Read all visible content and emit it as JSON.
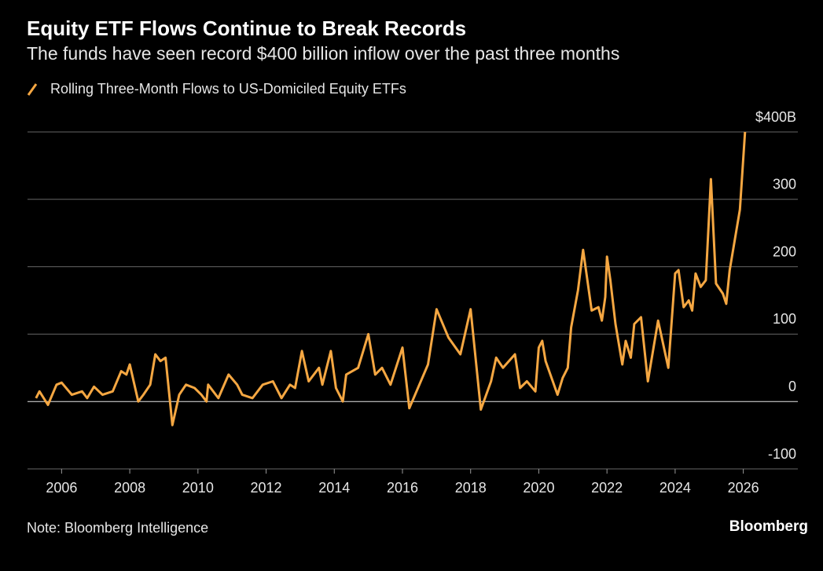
{
  "chart_data": {
    "type": "line",
    "title": "Equity ETF Flows Continue to Break Records",
    "subtitle": "The funds have seen record $400 billion inflow over the past three months",
    "note": "Note: Bloomberg Intelligence",
    "brand": "Bloomberg",
    "x": [
      2005.25,
      2005.35,
      2005.6,
      2005.85,
      2006.0,
      2006.3,
      2006.6,
      2006.75,
      2006.95,
      2007.2,
      2007.5,
      2007.75,
      2007.9,
      2008.0,
      2008.25,
      2008.4,
      2008.6,
      2008.75,
      2008.9,
      2009.05,
      2009.25,
      2009.45,
      2009.65,
      2009.9,
      2010.1,
      2010.25,
      2010.3,
      2010.6,
      2010.9,
      2011.15,
      2011.3,
      2011.6,
      2011.9,
      2012.2,
      2012.45,
      2012.7,
      2012.85,
      2013.05,
      2013.25,
      2013.55,
      2013.65,
      2013.9,
      2014.05,
      2014.25,
      2014.35,
      2014.7,
      2015.0,
      2015.2,
      2015.4,
      2015.65,
      2016.0,
      2016.2,
      2016.75,
      2017.0,
      2017.35,
      2017.7,
      2018.0,
      2018.3,
      2018.6,
      2018.75,
      2018.95,
      2019.3,
      2019.45,
      2019.65,
      2019.9,
      2020.0,
      2020.1,
      2020.2,
      2020.55,
      2020.7,
      2020.85,
      2020.95,
      2021.15,
      2021.3,
      2021.55,
      2021.75,
      2021.85,
      2021.95,
      2022.0,
      2022.1,
      2022.25,
      2022.45,
      2022.55,
      2022.7,
      2022.8,
      2023.0,
      2023.2,
      2023.5,
      2023.8,
      2024.0,
      2024.1,
      2024.25,
      2024.4,
      2024.5,
      2024.6,
      2024.75,
      2024.9,
      2025.05,
      2025.2,
      2025.4,
      2025.5,
      2025.6,
      2025.9,
      2026.05
    ],
    "series": [
      {
        "name": "Rolling Three-Month Flows to US-Domiciled Equity ETFs",
        "color": "#f5a742",
        "values": [
          5,
          15,
          -5,
          25,
          28,
          10,
          15,
          5,
          22,
          10,
          15,
          45,
          40,
          55,
          0,
          10,
          25,
          70,
          60,
          65,
          -35,
          10,
          25,
          20,
          10,
          0,
          25,
          5,
          40,
          25,
          10,
          5,
          25,
          30,
          5,
          25,
          20,
          75,
          30,
          50,
          25,
          75,
          20,
          0,
          40,
          50,
          100,
          40,
          50,
          25,
          80,
          -10,
          55,
          137,
          95,
          70,
          137,
          -12,
          30,
          65,
          50,
          70,
          20,
          30,
          15,
          80,
          90,
          60,
          10,
          35,
          50,
          110,
          165,
          225,
          135,
          140,
          120,
          155,
          215,
          180,
          115,
          55,
          90,
          65,
          115,
          125,
          30,
          120,
          50,
          190,
          195,
          140,
          150,
          135,
          190,
          170,
          180,
          330,
          175,
          160,
          145,
          195,
          285,
          400
        ]
      }
    ],
    "xlim": [
      2005,
      2027.6
    ],
    "xticks": [
      2006,
      2008,
      2010,
      2012,
      2014,
      2016,
      2018,
      2020,
      2022,
      2024,
      2026
    ],
    "ylim": [
      -100,
      400
    ],
    "yticks": [
      -100,
      0,
      100,
      200,
      300,
      {
        "value": 400,
        "label": "$400B"
      }
    ],
    "grid": true
  }
}
